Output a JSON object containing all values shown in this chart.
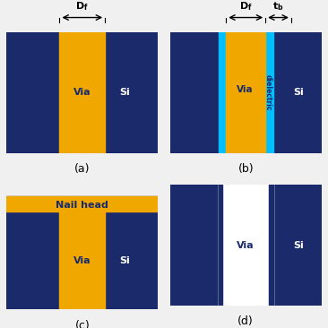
{
  "bg_color": "#1a2a6b",
  "via_color": "#f0a800",
  "dielectric_color": "#00bfff",
  "white_color": "#ffffff",
  "nail_color": "#f0a800",
  "si_text_color": "#ffffff",
  "via_text_color": "#1a2a6b",
  "nail_text_color": "#1a2a6b",
  "label_a": "(a)",
  "label_b": "(b)",
  "label_c": "(c)",
  "label_d": "(d)",
  "df_label": "D_f",
  "tb_label": "t_b",
  "nail_head_label": "Nail head",
  "via_label": "Via",
  "si_label": "Si",
  "dielectric_label": "dielectric"
}
